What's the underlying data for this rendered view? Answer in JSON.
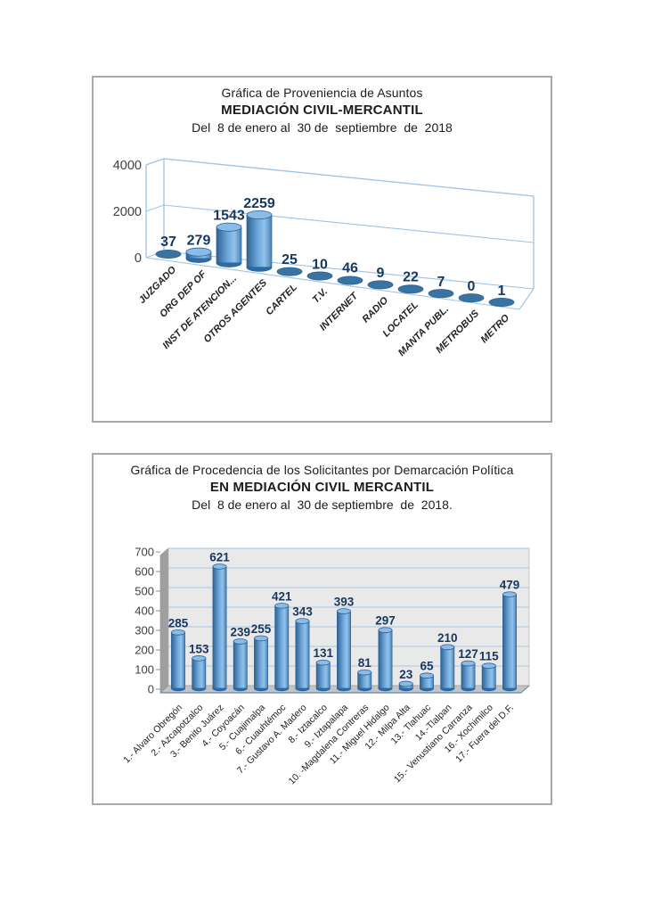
{
  "page": {
    "background": "#ffffff"
  },
  "colors": {
    "box_border": "#a8a8a8",
    "title_text": "#1c1c1c",
    "value_label": "#17375e",
    "axis_text": "#3f3f3f",
    "category_text": "#222222",
    "frame_blue": "#9dc3e6",
    "grid_blue": "#a9c6e0",
    "plot_bg": "#e9e9e9",
    "wall_gray": "#9f9f9f",
    "floor_gray": "#c4c4c4",
    "roof_gray": "#d9d9d9",
    "wall_edge": "#8e8e8e",
    "floor_front_edge": "#5e85ad",
    "bar_edge": "#2b6399",
    "bar_base": "#2f6ba3",
    "bar_top": "#8cbbe5",
    "disc_fill": "#3a72a0"
  },
  "chart_data": [
    {
      "type": "bar",
      "style": "3d-cylinder-perspective",
      "title": "Gráfica de Proveniencia de Asuntos",
      "subtitle": "MEDIACIÓN CIVIL-MERCANTIL",
      "period": "Del  8 de enero al  30 de  septiembre  de  2018",
      "xlabel": "",
      "ylabel": "",
      "ylim": [
        0,
        4000
      ],
      "yticks": [
        0,
        2000,
        4000
      ],
      "grid": true,
      "legend": "none",
      "categories": [
        "JUZGADO",
        "ORG DEP OF",
        "INST DE ATENCION...",
        "OTROS AGENTES",
        "CARTEL",
        "T.V.",
        "INTERNET",
        "RADIO",
        "LOCATEL",
        "MANTA PUBL.",
        "METROBUS",
        "METRO"
      ],
      "values": [
        37,
        279,
        1543,
        2259,
        25,
        10,
        46,
        9,
        22,
        7,
        0,
        1
      ]
    },
    {
      "type": "bar",
      "style": "3d-cylinder",
      "title": "Gráfica de Procedencia de los Solicitantes por Demarcación Política",
      "subtitle": "EN MEDIACIÓN CIVIL MERCANTIL",
      "period": "Del  8 de enero al  30 de septiembre  de  2018.",
      "xlabel": "",
      "ylabel": "",
      "ylim": [
        0,
        700
      ],
      "yticks": [
        0,
        100,
        200,
        300,
        400,
        500,
        600,
        700
      ],
      "grid": true,
      "legend": "none",
      "categories": [
        "1.- Alvaro Obregón",
        "2.- Azcapotzalco",
        "3.- Benito Juárez",
        "4.- Coyoacán",
        "5.- Cuajimalpa",
        "6.- Cuauhtémoc",
        "7.- Gustavo A. Madero",
        "8.- Iztacalco",
        "9.- Iztapalapa",
        "10. -Magdalena  Contreras",
        "11.- Miguel Hidalgo",
        "12.- Milpa Alta",
        "13.- Tlahuac",
        "14.-Tlalpan",
        "15.- Venustiano Carranza",
        "16.- Xochimilco",
        "17.- Fuera del D.F."
      ],
      "values": [
        285,
        153,
        621,
        239,
        255,
        421,
        343,
        131,
        393,
        81,
        297,
        23,
        65,
        210,
        127,
        115,
        479
      ]
    }
  ]
}
